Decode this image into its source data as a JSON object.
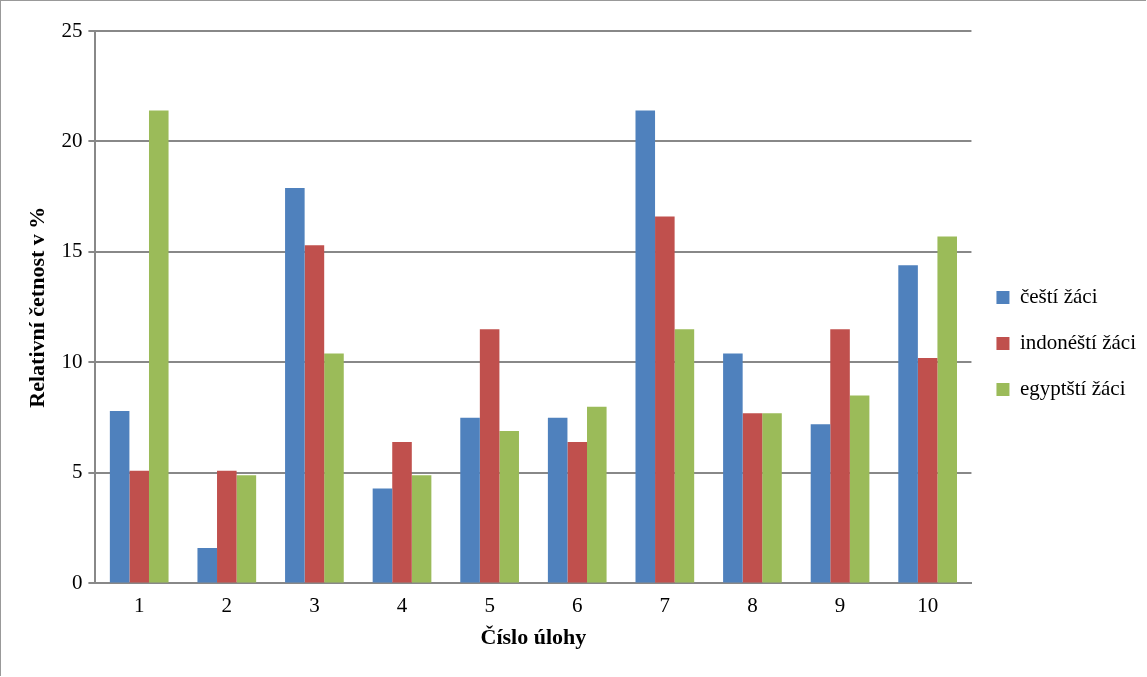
{
  "chart_data": {
    "type": "bar",
    "xlabel": "Číslo úlohy",
    "ylabel": "Relativní četnost v %",
    "categories": [
      "1",
      "2",
      "3",
      "4",
      "5",
      "6",
      "7",
      "8",
      "9",
      "10"
    ],
    "series": [
      {
        "name": "čeští žáci",
        "color": "#4f81bd",
        "values": [
          7.8,
          1.6,
          17.9,
          4.3,
          7.5,
          7.5,
          21.4,
          10.4,
          7.2,
          14.4
        ]
      },
      {
        "name": "indonéští žáci",
        "color": "#c0504d",
        "values": [
          5.1,
          5.1,
          15.3,
          6.4,
          11.5,
          6.4,
          16.6,
          7.7,
          11.5,
          10.2
        ]
      },
      {
        "name": "egyptští žáci",
        "color": "#9bbb59",
        "values": [
          21.4,
          4.9,
          10.4,
          4.9,
          6.9,
          8.0,
          11.5,
          7.7,
          8.5,
          15.7
        ]
      }
    ],
    "ylim": [
      0,
      25
    ],
    "yticks": [
      0,
      5,
      10,
      15,
      20,
      25
    ],
    "grid": "y",
    "legend": "right"
  }
}
